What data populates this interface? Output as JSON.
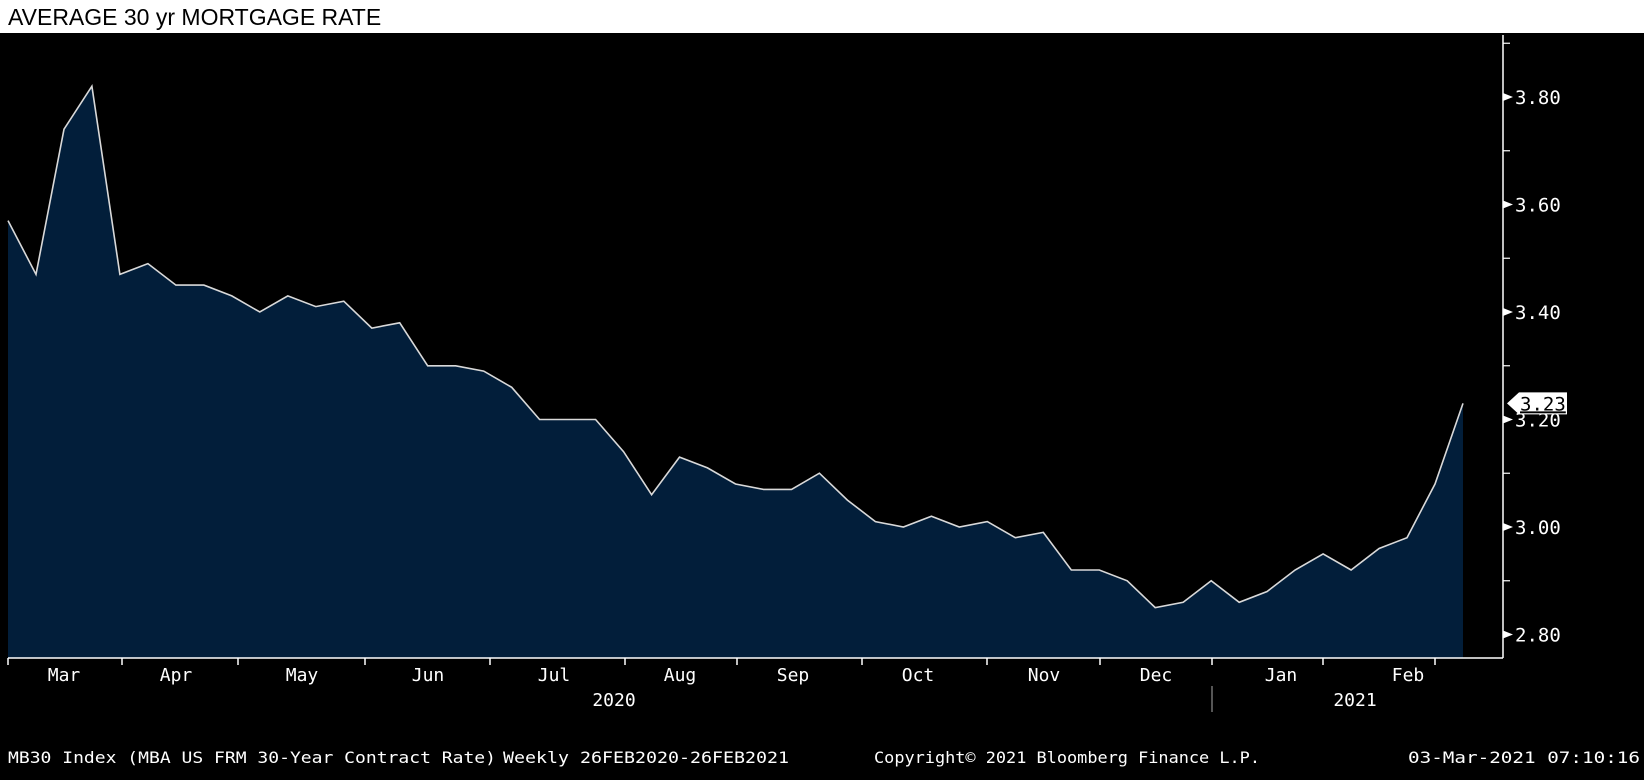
{
  "title": "AVERAGE 30 yr MORTGAGE RATE",
  "footer": {
    "security": "MB30 Index (MBA US FRM 30-Year Contract Rate)",
    "range": "Weekly 26FEB2020-26FEB2021",
    "copyright": "Copyright© 2021 Bloomberg Finance L.P.",
    "timestamp": "03-Mar-2021 07:10:16"
  },
  "chart_data": {
    "type": "area",
    "title": "AVERAGE 30 yr MORTGAGE RATE",
    "ylim": [
      2.76,
      3.92
    ],
    "y_ticks": [
      "3.80",
      "3.60",
      "3.40",
      "3.20",
      "3.00",
      "2.80"
    ],
    "y_axis_position": "right",
    "grid": false,
    "last_value_label": "3.23",
    "x_month_labels": [
      "Mar",
      "Apr",
      "May",
      "Jun",
      "Jul",
      "Aug",
      "Sep",
      "Oct",
      "Nov",
      "Dec",
      "Jan",
      "Feb"
    ],
    "x_year_labels": [
      "2020",
      "2021"
    ],
    "colors": {
      "fill": "#021e3a",
      "line": "#d9d9d9",
      "background": "#000000",
      "text": "#ffffff"
    },
    "x": [
      "2020-02-26",
      "2020-03-04",
      "2020-03-11",
      "2020-03-18",
      "2020-03-25",
      "2020-04-01",
      "2020-04-08",
      "2020-04-15",
      "2020-04-22",
      "2020-04-29",
      "2020-05-06",
      "2020-05-13",
      "2020-05-20",
      "2020-05-27",
      "2020-06-03",
      "2020-06-10",
      "2020-06-17",
      "2020-06-24",
      "2020-07-01",
      "2020-07-08",
      "2020-07-15",
      "2020-07-22",
      "2020-07-29",
      "2020-08-05",
      "2020-08-12",
      "2020-08-19",
      "2020-08-26",
      "2020-09-02",
      "2020-09-09",
      "2020-09-16",
      "2020-09-23",
      "2020-09-30",
      "2020-10-07",
      "2020-10-14",
      "2020-10-21",
      "2020-10-28",
      "2020-11-04",
      "2020-11-11",
      "2020-11-18",
      "2020-11-25",
      "2020-12-02",
      "2020-12-09",
      "2020-12-16",
      "2020-12-23",
      "2020-12-30",
      "2021-01-06",
      "2021-01-13",
      "2021-01-20",
      "2021-01-27",
      "2021-02-03",
      "2021-02-10",
      "2021-02-17",
      "2021-02-24"
    ],
    "values": [
      3.57,
      3.47,
      3.74,
      3.82,
      3.47,
      3.49,
      3.45,
      3.45,
      3.43,
      3.4,
      3.43,
      3.41,
      3.42,
      3.37,
      3.38,
      3.3,
      3.3,
      3.29,
      3.26,
      3.2,
      3.2,
      3.2,
      3.14,
      3.06,
      3.13,
      3.11,
      3.08,
      3.07,
      3.07,
      3.1,
      3.05,
      3.01,
      3.0,
      3.02,
      3.0,
      3.01,
      2.98,
      2.99,
      2.92,
      2.92,
      2.9,
      2.85,
      2.86,
      2.9,
      2.86,
      2.88,
      2.92,
      2.95,
      2.92,
      2.96,
      2.98,
      3.08,
      3.23
    ]
  }
}
